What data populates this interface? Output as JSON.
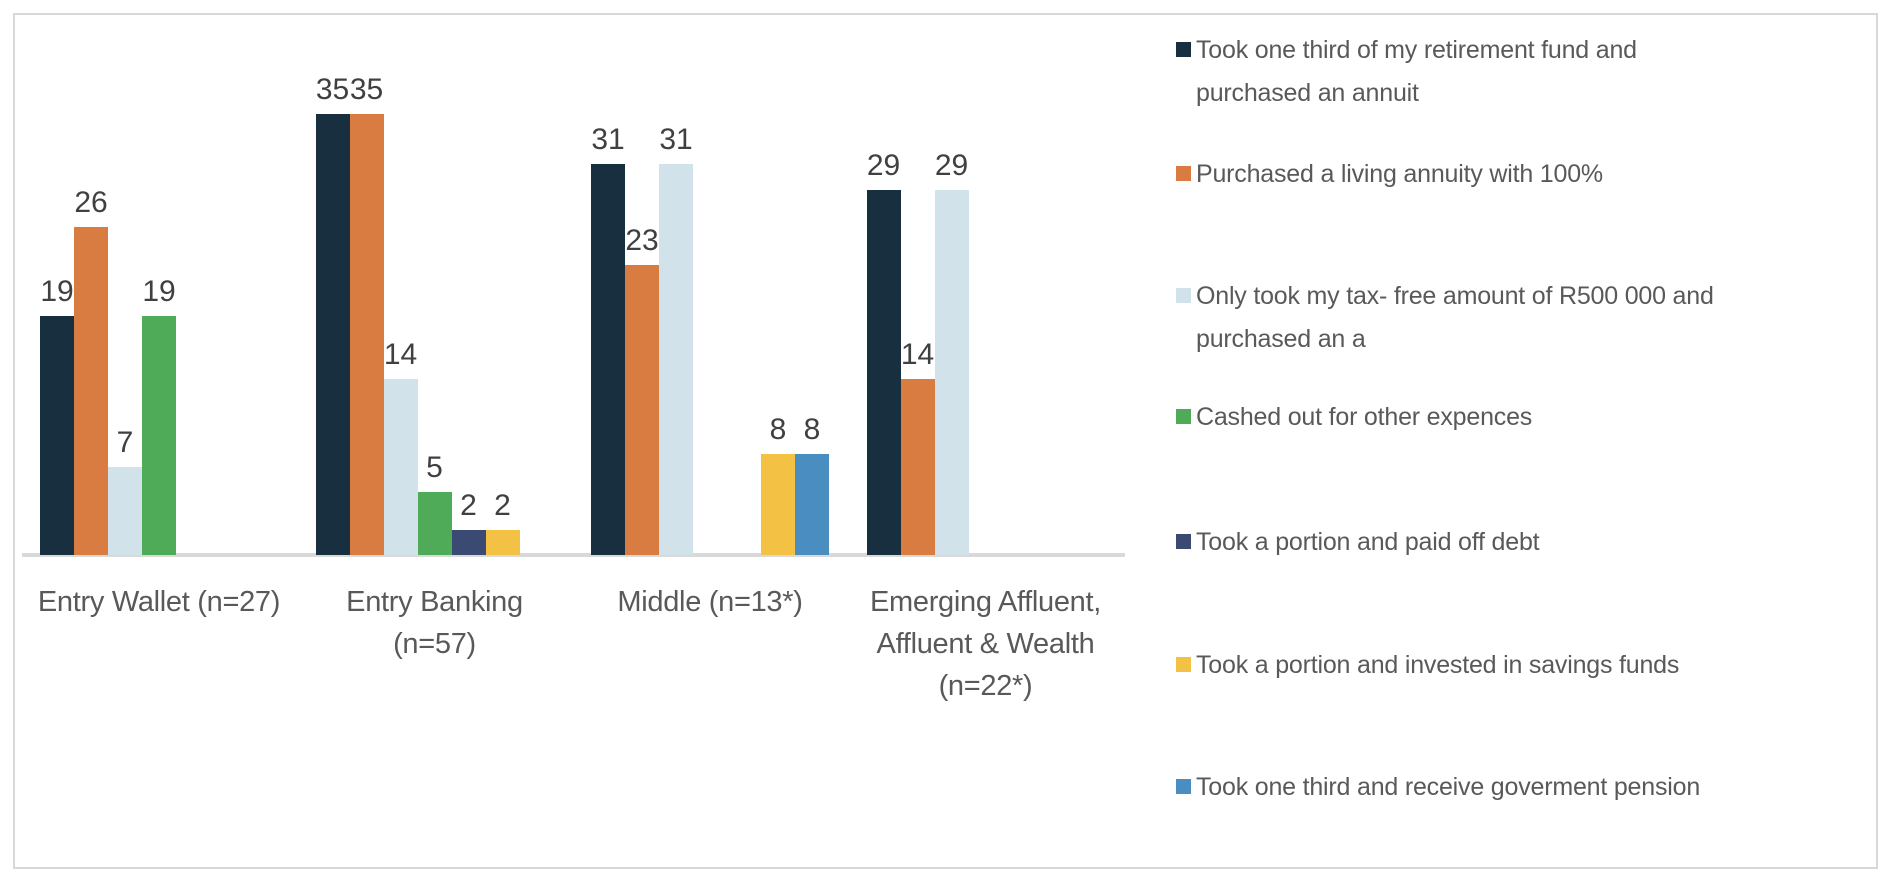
{
  "chart_data": {
    "type": "bar",
    "title": "",
    "xlabel": "",
    "ylabel": "",
    "ylim": [
      0,
      40
    ],
    "grid": false,
    "bar_value_labels": true,
    "legend_position": "right",
    "axis_color": "#D9D9D9",
    "value_label_color": "#404040",
    "category_label_color": "#595959",
    "legend_text_color": "#595959",
    "categories": [
      "Entry Wallet (n=27)",
      "Entry Banking\n(n=57)",
      "Middle (n=13*)",
      "Emerging Affluent,\nAffluent & Wealth\n(n=22*)"
    ],
    "series": [
      {
        "name": "Took one third of my retirement fund and\npurchased an annuit",
        "color": "#172F3F",
        "values": [
          19,
          35,
          31,
          29
        ]
      },
      {
        "name": "Purchased a living annuity with 100%",
        "color": "#D87C42",
        "values": [
          26,
          35,
          23,
          14
        ]
      },
      {
        "name": "Only took my tax- free amount of R500 000 and\npurchased an a",
        "color": "#D2E2EA",
        "values": [
          7,
          14,
          31,
          29
        ]
      },
      {
        "name": "Cashed out for other expences",
        "color": "#4FAB57",
        "values": [
          19,
          5,
          0,
          0
        ]
      },
      {
        "name": "Took a portion and paid off debt",
        "color": "#3B4A73",
        "values": [
          0,
          2,
          0,
          0
        ]
      },
      {
        "name": "Took a portion and invested in savings funds",
        "color": "#F3C244",
        "values": [
          0,
          2,
          8,
          0
        ]
      },
      {
        "name": "Took one third and receive goverment pension",
        "color": "#4A8DC0",
        "values": [
          0,
          0,
          8,
          0
        ]
      }
    ]
  }
}
